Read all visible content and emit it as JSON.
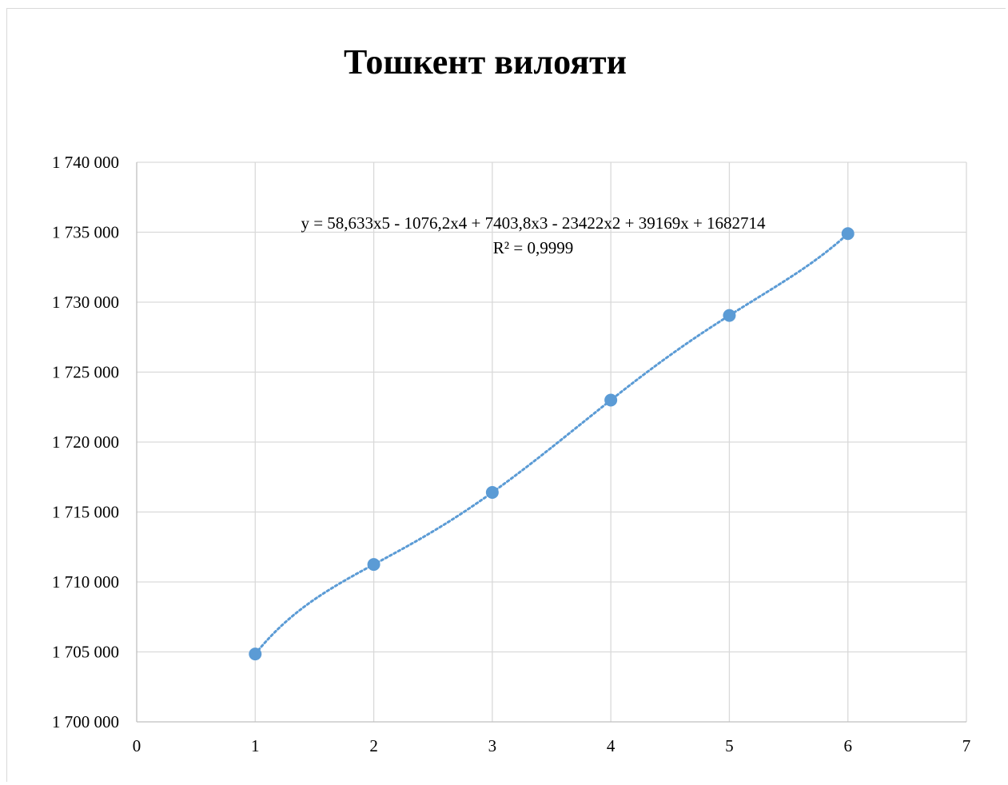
{
  "chart_data": {
    "type": "scatter",
    "title": "Тошкент вилояти",
    "xlabel": "",
    "ylabel": "",
    "xlim": [
      0,
      7
    ],
    "ylim": [
      1700000,
      1740000
    ],
    "x_ticks": [
      0,
      1,
      2,
      3,
      4,
      5,
      6,
      7
    ],
    "y_ticks": [
      1700000,
      1705000,
      1710000,
      1715000,
      1720000,
      1725000,
      1730000,
      1735000,
      1740000
    ],
    "x_tick_labels": [
      "0",
      "1",
      "2",
      "3",
      "4",
      "5",
      "6",
      "7"
    ],
    "y_tick_labels": [
      "1 700 000",
      "1 705 000",
      "1 710 000",
      "1 715 000",
      "1 720 000",
      "1 725 000",
      "1 730 000",
      "1 735 000",
      "1 740 000"
    ],
    "grid": true,
    "legend": "none",
    "series": [
      {
        "x": [
          1,
          2,
          3,
          4,
          5,
          6
        ],
        "values": [
          1704850,
          1711250,
          1716400,
          1723000,
          1729050,
          1734900
        ],
        "color": "#5b9bd5",
        "marker": "circle"
      }
    ],
    "trendline": {
      "kind": "polynomial",
      "order": 5,
      "coefficients": [
        58.633,
        -1076.2,
        7403.8,
        -23422,
        39169,
        1682714
      ],
      "style": "dotted",
      "color": "#5b9bd5",
      "equation": "y = 58,633x5 - 1076,2x4 + 7403,8x3 - 23422x2 + 39169x + 1682714",
      "r_squared": "R² = 0,9999"
    }
  }
}
